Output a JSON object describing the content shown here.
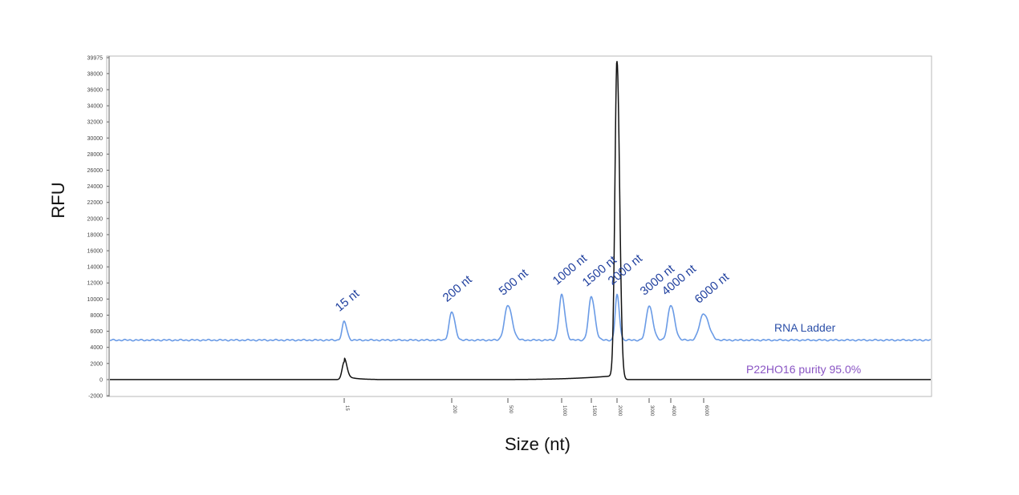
{
  "chart_data": {
    "type": "line",
    "xlabel": "Size (nt)",
    "ylabel": "RFU",
    "ylim": [
      -2000,
      39975
    ],
    "y_ticks": [
      -2000,
      0,
      2000,
      4000,
      6000,
      8000,
      10000,
      12000,
      14000,
      16000,
      18000,
      20000,
      22000,
      24000,
      26000,
      28000,
      30000,
      32000,
      34000,
      36000,
      38000,
      39975
    ],
    "y_tick_labels": [
      "-2000",
      "0",
      "2000",
      "4000",
      "6000",
      "8000",
      "10000",
      "12000",
      "14000",
      "16000",
      "18000",
      "20000",
      "22000",
      "24000",
      "26000",
      "28000",
      "30000",
      "32000",
      "34000",
      "36000",
      "38000",
      "39975"
    ],
    "x_ticks": [
      "15",
      "200",
      "500",
      "1000",
      "1500",
      "2000",
      "3000",
      "4000",
      "6000"
    ],
    "grid": false,
    "series": [
      {
        "name": "RNA Ladder",
        "color": "#6a9be6",
        "baseline": 4900,
        "peaks": [
          {
            "label": "15 nt",
            "x": "15",
            "height": 7200
          },
          {
            "label": "200 nt",
            "x": "200",
            "height": 8400
          },
          {
            "label": "500 nt",
            "x": "500",
            "height": 9200
          },
          {
            "label": "1000 nt",
            "x": "1000",
            "height": 10500
          },
          {
            "label": "1500 nt",
            "x": "1500",
            "height": 10300
          },
          {
            "label": "2000 nt",
            "x": "2000",
            "height": 10500
          },
          {
            "label": "3000 nt",
            "x": "3000",
            "height": 9200
          },
          {
            "label": "4000 nt",
            "x": "4000",
            "height": 9200
          },
          {
            "label": "6000 nt",
            "x": "6000",
            "height": 8200
          }
        ]
      },
      {
        "name": "P22HO16 purity 95.0%",
        "color": "#111111",
        "label_color": "#8a55c4",
        "baseline": 0,
        "peaks": [
          {
            "x": "15",
            "height": 2200
          },
          {
            "x": "2000",
            "height": 39500
          }
        ]
      }
    ]
  }
}
